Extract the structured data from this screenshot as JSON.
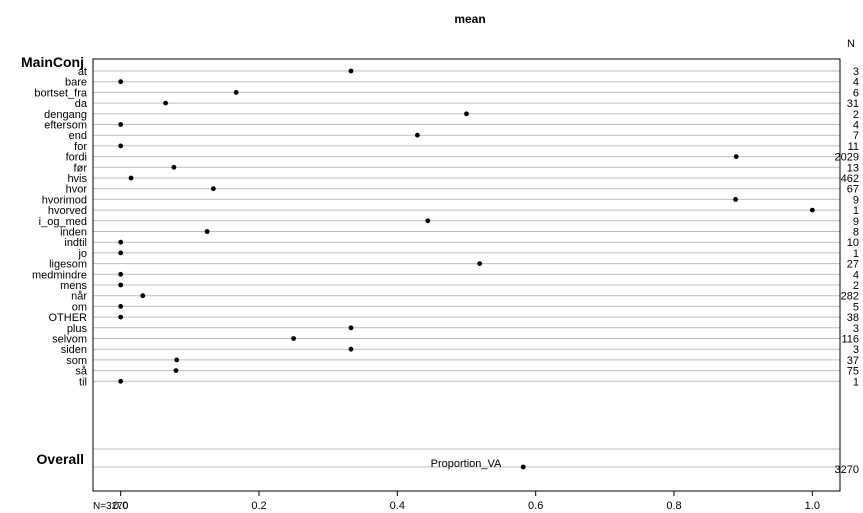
{
  "chart_data": {
    "type": "scatter",
    "title": "mean",
    "xlabel": "Proportion_VA",
    "xlim": [
      -0.04,
      1.04
    ],
    "xticks": [
      "0.0",
      "0.2",
      "0.4",
      "0.6",
      "0.8",
      "1.0"
    ],
    "xtick_values": [
      0,
      0.2,
      0.4,
      0.6,
      0.8,
      1.0
    ],
    "n_header": "N",
    "group_label": "MainConj",
    "grid": "horizontal",
    "points": [
      {
        "category": "at",
        "value": 0.333,
        "n": "3"
      },
      {
        "category": "bare",
        "value": 0.0,
        "n": "4"
      },
      {
        "category": "bortset_fra",
        "value": 0.167,
        "n": "6"
      },
      {
        "category": "da",
        "value": 0.065,
        "n": "31"
      },
      {
        "category": "dengang",
        "value": 0.5,
        "n": "2"
      },
      {
        "category": "eftersom",
        "value": 0.0,
        "n": "4"
      },
      {
        "category": "end",
        "value": 0.429,
        "n": "7"
      },
      {
        "category": "for",
        "value": 0.0,
        "n": "11"
      },
      {
        "category": "fordi",
        "value": 0.89,
        "n": "2029"
      },
      {
        "category": "før",
        "value": 0.077,
        "n": "13"
      },
      {
        "category": "hvis",
        "value": 0.015,
        "n": "462"
      },
      {
        "category": "hvor",
        "value": 0.134,
        "n": "67"
      },
      {
        "category": "hvorimod",
        "value": 0.889,
        "n": "9"
      },
      {
        "category": "hvorved",
        "value": 1.0,
        "n": "1"
      },
      {
        "category": "i_og_med",
        "value": 0.444,
        "n": "9"
      },
      {
        "category": "inden",
        "value": 0.125,
        "n": "8"
      },
      {
        "category": "indtil",
        "value": 0.0,
        "n": "10"
      },
      {
        "category": "jo",
        "value": 0.0,
        "n": "1"
      },
      {
        "category": "ligesom",
        "value": 0.519,
        "n": "27"
      },
      {
        "category": "medmindre",
        "value": 0.0,
        "n": "4"
      },
      {
        "category": "mens",
        "value": 0.0,
        "n": "2"
      },
      {
        "category": "når",
        "value": 0.032,
        "n": "282"
      },
      {
        "category": "om",
        "value": 0.0,
        "n": "5"
      },
      {
        "category": "OTHER",
        "value": 0.0,
        "n": "38"
      },
      {
        "category": "plus",
        "value": 0.333,
        "n": "3"
      },
      {
        "category": "selvom",
        "value": 0.25,
        "n": "116"
      },
      {
        "category": "siden",
        "value": 0.333,
        "n": "3"
      },
      {
        "category": "som",
        "value": 0.081,
        "n": "37"
      },
      {
        "category": "så",
        "value": 0.08,
        "n": "75"
      },
      {
        "category": "til",
        "value": 0.0,
        "n": "1"
      }
    ],
    "overall": {
      "label": "Overall",
      "value": 0.582,
      "n": "3270"
    },
    "footnote": "N=3270"
  }
}
